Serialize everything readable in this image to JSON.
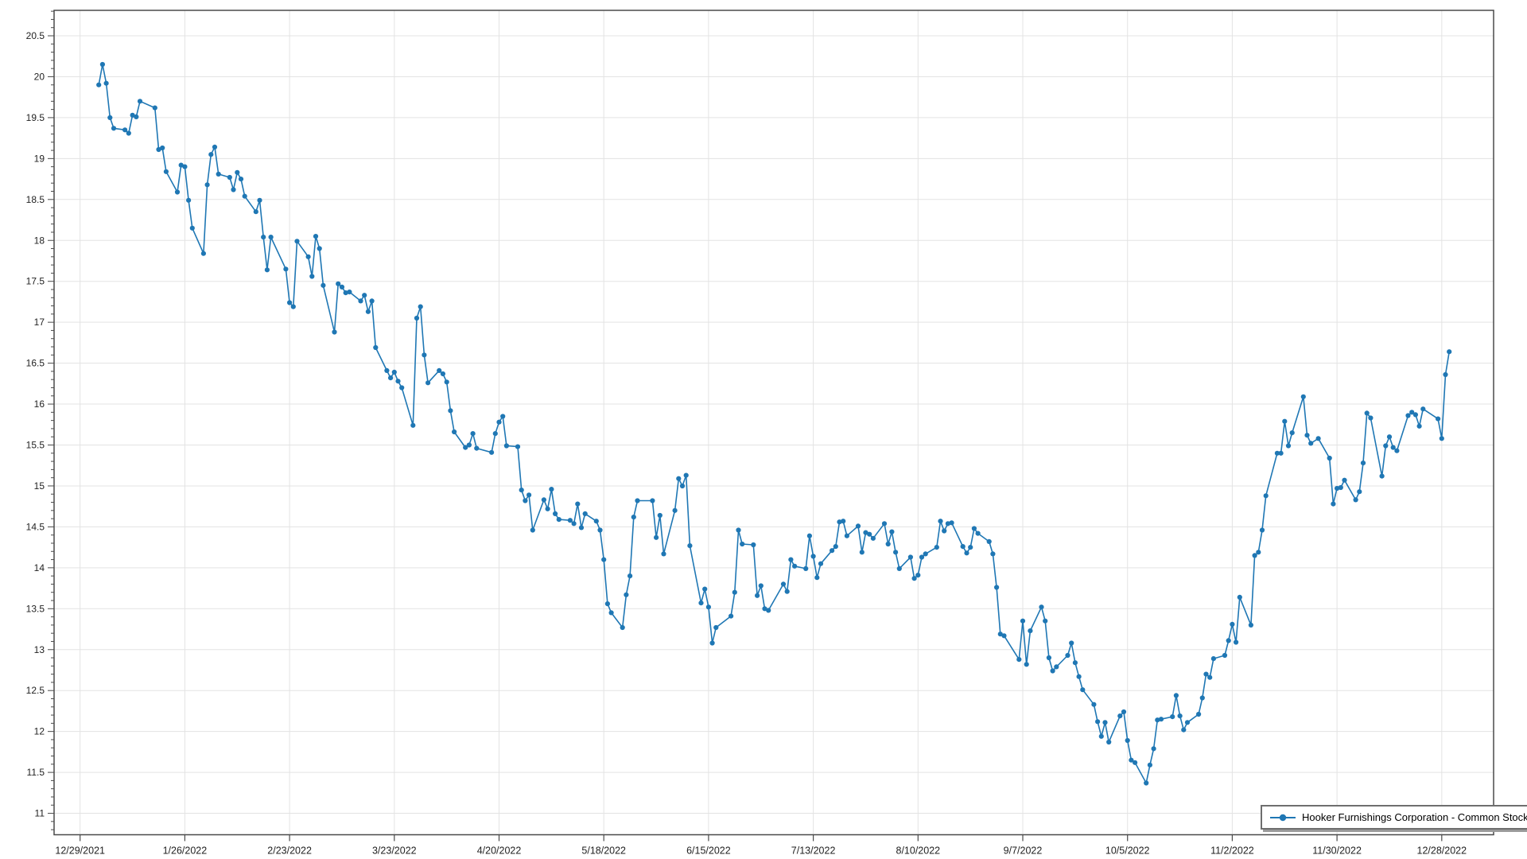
{
  "window": {
    "background": "#ffffff"
  },
  "chart_data": {
    "type": "line",
    "title": "",
    "xlabel": "",
    "ylabel": "",
    "grid": true,
    "legend_position": "bottom-right",
    "marker": "circle",
    "series": [
      {
        "name": "Hooker Furnishings Corporation - Common Stock",
        "color": "#1f77b4",
        "points": [
          [
            "1/3/2022",
            19.9
          ],
          [
            "1/4/2022",
            20.15
          ],
          [
            "1/5/2022",
            19.92
          ],
          [
            "1/6/2022",
            19.5
          ],
          [
            "1/7/2022",
            19.37
          ],
          [
            "1/10/2022",
            19.35
          ],
          [
            "1/11/2022",
            19.31
          ],
          [
            "1/12/2022",
            19.53
          ],
          [
            "1/13/2022",
            19.51
          ],
          [
            "1/14/2022",
            19.7
          ],
          [
            "1/18/2022",
            19.62
          ],
          [
            "1/19/2022",
            19.11
          ],
          [
            "1/20/2022",
            19.13
          ],
          [
            "1/21/2022",
            18.84
          ],
          [
            "1/24/2022",
            18.59
          ],
          [
            "1/25/2022",
            18.92
          ],
          [
            "1/26/2022",
            18.9
          ],
          [
            "1/27/2022",
            18.49
          ],
          [
            "1/28/2022",
            18.15
          ],
          [
            "1/31/2022",
            17.84
          ],
          [
            "2/1/2022",
            18.68
          ],
          [
            "2/2/2022",
            19.05
          ],
          [
            "2/3/2022",
            19.14
          ],
          [
            "2/4/2022",
            18.81
          ],
          [
            "2/7/2022",
            18.77
          ],
          [
            "2/8/2022",
            18.62
          ],
          [
            "2/9/2022",
            18.83
          ],
          [
            "2/10/2022",
            18.75
          ],
          [
            "2/11/2022",
            18.54
          ],
          [
            "2/14/2022",
            18.35
          ],
          [
            "2/15/2022",
            18.49
          ],
          [
            "2/16/2022",
            18.04
          ],
          [
            "2/17/2022",
            17.64
          ],
          [
            "2/18/2022",
            18.04
          ],
          [
            "2/22/2022",
            17.65
          ],
          [
            "2/23/2022",
            17.24
          ],
          [
            "2/24/2022",
            17.19
          ],
          [
            "2/25/2022",
            17.99
          ],
          [
            "2/28/2022",
            17.8
          ],
          [
            "3/1/2022",
            17.56
          ],
          [
            "3/2/2022",
            18.05
          ],
          [
            "3/3/2022",
            17.9
          ],
          [
            "3/4/2022",
            17.45
          ],
          [
            "3/7/2022",
            16.88
          ],
          [
            "3/8/2022",
            17.47
          ],
          [
            "3/9/2022",
            17.43
          ],
          [
            "3/10/2022",
            17.36
          ],
          [
            "3/11/2022",
            17.37
          ],
          [
            "3/14/2022",
            17.26
          ],
          [
            "3/15/2022",
            17.33
          ],
          [
            "3/16/2022",
            17.13
          ],
          [
            "3/17/2022",
            17.26
          ],
          [
            "3/18/2022",
            16.69
          ],
          [
            "3/21/2022",
            16.41
          ],
          [
            "3/22/2022",
            16.32
          ],
          [
            "3/23/2022",
            16.39
          ],
          [
            "3/24/2022",
            16.28
          ],
          [
            "3/25/2022",
            16.2
          ],
          [
            "3/28/2022",
            15.74
          ],
          [
            "3/29/2022",
            17.05
          ],
          [
            "3/30/2022",
            17.19
          ],
          [
            "3/31/2022",
            16.6
          ],
          [
            "4/1/2022",
            16.26
          ],
          [
            "4/4/2022",
            16.41
          ],
          [
            "4/5/2022",
            16.37
          ],
          [
            "4/6/2022",
            16.27
          ],
          [
            "4/7/2022",
            15.92
          ],
          [
            "4/8/2022",
            15.66
          ],
          [
            "4/11/2022",
            15.47
          ],
          [
            "4/12/2022",
            15.5
          ],
          [
            "4/13/2022",
            15.64
          ],
          [
            "4/14/2022",
            15.46
          ],
          [
            "4/18/2022",
            15.41
          ],
          [
            "4/19/2022",
            15.64
          ],
          [
            "4/20/2022",
            15.78
          ],
          [
            "4/21/2022",
            15.85
          ],
          [
            "4/22/2022",
            15.49
          ],
          [
            "4/25/2022",
            15.48
          ],
          [
            "4/26/2022",
            14.95
          ],
          [
            "4/27/2022",
            14.82
          ],
          [
            "4/28/2022",
            14.89
          ],
          [
            "4/29/2022",
            14.46
          ],
          [
            "5/2/2022",
            14.83
          ],
          [
            "5/3/2022",
            14.72
          ],
          [
            "5/4/2022",
            14.96
          ],
          [
            "5/5/2022",
            14.66
          ],
          [
            "5/6/2022",
            14.59
          ],
          [
            "5/9/2022",
            14.58
          ],
          [
            "5/10/2022",
            14.54
          ],
          [
            "5/11/2022",
            14.78
          ],
          [
            "5/12/2022",
            14.49
          ],
          [
            "5/13/2022",
            14.66
          ],
          [
            "5/16/2022",
            14.57
          ],
          [
            "5/17/2022",
            14.46
          ],
          [
            "5/18/2022",
            14.1
          ],
          [
            "5/19/2022",
            13.56
          ],
          [
            "5/20/2022",
            13.45
          ],
          [
            "5/23/2022",
            13.27
          ],
          [
            "5/24/2022",
            13.67
          ],
          [
            "5/25/2022",
            13.9
          ],
          [
            "5/26/2022",
            14.62
          ],
          [
            "5/27/2022",
            14.82
          ],
          [
            "5/31/2022",
            14.82
          ],
          [
            "6/1/2022",
            14.37
          ],
          [
            "6/2/2022",
            14.64
          ],
          [
            "6/3/2022",
            14.17
          ],
          [
            "6/6/2022",
            14.7
          ],
          [
            "6/7/2022",
            15.09
          ],
          [
            "6/8/2022",
            15.0
          ],
          [
            "6/9/2022",
            15.13
          ],
          [
            "6/10/2022",
            14.27
          ],
          [
            "6/13/2022",
            13.57
          ],
          [
            "6/14/2022",
            13.74
          ],
          [
            "6/15/2022",
            13.52
          ],
          [
            "6/16/2022",
            13.08
          ],
          [
            "6/17/2022",
            13.27
          ],
          [
            "6/21/2022",
            13.41
          ],
          [
            "6/22/2022",
            13.7
          ],
          [
            "6/23/2022",
            14.46
          ],
          [
            "6/24/2022",
            14.29
          ],
          [
            "6/27/2022",
            14.28
          ],
          [
            "6/28/2022",
            13.66
          ],
          [
            "6/29/2022",
            13.78
          ],
          [
            "6/30/2022",
            13.5
          ],
          [
            "7/1/2022",
            13.48
          ],
          [
            "7/5/2022",
            13.8
          ],
          [
            "7/6/2022",
            13.71
          ],
          [
            "7/7/2022",
            14.1
          ],
          [
            "7/8/2022",
            14.02
          ],
          [
            "7/11/2022",
            13.99
          ],
          [
            "7/12/2022",
            14.39
          ],
          [
            "7/13/2022",
            14.14
          ],
          [
            "7/14/2022",
            13.88
          ],
          [
            "7/15/2022",
            14.05
          ],
          [
            "7/18/2022",
            14.21
          ],
          [
            "7/19/2022",
            14.26
          ],
          [
            "7/20/2022",
            14.56
          ],
          [
            "7/21/2022",
            14.57
          ],
          [
            "7/22/2022",
            14.39
          ],
          [
            "7/25/2022",
            14.51
          ],
          [
            "7/26/2022",
            14.19
          ],
          [
            "7/27/2022",
            14.43
          ],
          [
            "7/28/2022",
            14.41
          ],
          [
            "7/29/2022",
            14.36
          ],
          [
            "8/1/2022",
            14.54
          ],
          [
            "8/2/2022",
            14.29
          ],
          [
            "8/3/2022",
            14.44
          ],
          [
            "8/4/2022",
            14.19
          ],
          [
            "8/5/2022",
            13.99
          ],
          [
            "8/8/2022",
            14.13
          ],
          [
            "8/9/2022",
            13.87
          ],
          [
            "8/10/2022",
            13.91
          ],
          [
            "8/11/2022",
            14.13
          ],
          [
            "8/12/2022",
            14.17
          ],
          [
            "8/15/2022",
            14.25
          ],
          [
            "8/16/2022",
            14.57
          ],
          [
            "8/17/2022",
            14.45
          ],
          [
            "8/18/2022",
            14.54
          ],
          [
            "8/19/2022",
            14.55
          ],
          [
            "8/22/2022",
            14.26
          ],
          [
            "8/23/2022",
            14.18
          ],
          [
            "8/24/2022",
            14.25
          ],
          [
            "8/25/2022",
            14.48
          ],
          [
            "8/26/2022",
            14.42
          ],
          [
            "8/29/2022",
            14.32
          ],
          [
            "8/30/2022",
            14.17
          ],
          [
            "8/31/2022",
            13.76
          ],
          [
            "9/1/2022",
            13.19
          ],
          [
            "9/2/2022",
            13.17
          ],
          [
            "9/6/2022",
            12.88
          ],
          [
            "9/7/2022",
            13.35
          ],
          [
            "9/8/2022",
            12.82
          ],
          [
            "9/9/2022",
            13.23
          ],
          [
            "9/12/2022",
            13.52
          ],
          [
            "9/13/2022",
            13.35
          ],
          [
            "9/14/2022",
            12.9
          ],
          [
            "9/15/2022",
            12.74
          ],
          [
            "9/16/2022",
            12.79
          ],
          [
            "9/19/2022",
            12.93
          ],
          [
            "9/20/2022",
            13.08
          ],
          [
            "9/21/2022",
            12.84
          ],
          [
            "9/22/2022",
            12.67
          ],
          [
            "9/23/2022",
            12.51
          ],
          [
            "9/26/2022",
            12.33
          ],
          [
            "9/27/2022",
            12.12
          ],
          [
            "9/28/2022",
            11.94
          ],
          [
            "9/29/2022",
            12.11
          ],
          [
            "9/30/2022",
            11.87
          ],
          [
            "10/3/2022",
            12.19
          ],
          [
            "10/4/2022",
            12.24
          ],
          [
            "10/5/2022",
            11.89
          ],
          [
            "10/6/2022",
            11.65
          ],
          [
            "10/7/2022",
            11.62
          ],
          [
            "10/10/2022",
            11.37
          ],
          [
            "10/11/2022",
            11.59
          ],
          [
            "10/12/2022",
            11.79
          ],
          [
            "10/13/2022",
            12.14
          ],
          [
            "10/14/2022",
            12.15
          ],
          [
            "10/17/2022",
            12.18
          ],
          [
            "10/18/2022",
            12.44
          ],
          [
            "10/19/2022",
            12.19
          ],
          [
            "10/20/2022",
            12.02
          ],
          [
            "10/21/2022",
            12.11
          ],
          [
            "10/24/2022",
            12.21
          ],
          [
            "10/25/2022",
            12.41
          ],
          [
            "10/26/2022",
            12.7
          ],
          [
            "10/27/2022",
            12.66
          ],
          [
            "10/28/2022",
            12.89
          ],
          [
            "10/31/2022",
            12.93
          ],
          [
            "11/1/2022",
            13.11
          ],
          [
            "11/2/2022",
            13.31
          ],
          [
            "11/3/2022",
            13.09
          ],
          [
            "11/4/2022",
            13.64
          ],
          [
            "11/7/2022",
            13.3
          ],
          [
            "11/8/2022",
            14.15
          ],
          [
            "11/9/2022",
            14.19
          ],
          [
            "11/10/2022",
            14.46
          ],
          [
            "11/11/2022",
            14.88
          ],
          [
            "11/14/2022",
            15.4
          ],
          [
            "11/15/2022",
            15.4
          ],
          [
            "11/16/2022",
            15.79
          ],
          [
            "11/17/2022",
            15.49
          ],
          [
            "11/18/2022",
            15.65
          ],
          [
            "11/21/2022",
            16.09
          ],
          [
            "11/22/2022",
            15.62
          ],
          [
            "11/23/2022",
            15.52
          ],
          [
            "11/25/2022",
            15.58
          ],
          [
            "11/28/2022",
            15.34
          ],
          [
            "11/29/2022",
            14.78
          ],
          [
            "11/30/2022",
            14.97
          ],
          [
            "12/1/2022",
            14.98
          ],
          [
            "12/2/2022",
            15.07
          ],
          [
            "12/5/2022",
            14.83
          ],
          [
            "12/6/2022",
            14.93
          ],
          [
            "12/7/2022",
            15.28
          ],
          [
            "12/8/2022",
            15.89
          ],
          [
            "12/9/2022",
            15.83
          ],
          [
            "12/12/2022",
            15.12
          ],
          [
            "12/13/2022",
            15.49
          ],
          [
            "12/14/2022",
            15.6
          ],
          [
            "12/15/2022",
            15.47
          ],
          [
            "12/16/2022",
            15.43
          ],
          [
            "12/19/2022",
            15.86
          ],
          [
            "12/20/2022",
            15.9
          ],
          [
            "12/21/2022",
            15.87
          ],
          [
            "12/22/2022",
            15.73
          ],
          [
            "12/23/2022",
            15.94
          ],
          [
            "12/27/2022",
            15.82
          ],
          [
            "12/28/2022",
            15.58
          ],
          [
            "12/29/2022",
            16.36
          ],
          [
            "12/30/2022",
            16.64
          ]
        ]
      }
    ],
    "x_axis": {
      "start_date": "12/29/2021",
      "tick_interval_days": 28,
      "tick_labels": [
        "12/29/2021",
        "1/26/2022",
        "2/23/2022",
        "3/23/2022",
        "4/20/2022",
        "5/18/2022",
        "6/15/2022",
        "7/13/2022",
        "8/10/2022",
        "9/7/2022",
        "10/5/2022",
        "11/2/2022",
        "11/30/2022",
        "12/28/2022"
      ]
    },
    "y_axis": {
      "tick_labels": [
        "20.5",
        "20",
        "19.5",
        "19",
        "18.5",
        "18",
        "17.5",
        "17",
        "16.5",
        "16",
        "15.5",
        "15",
        "14.5",
        "14",
        "13.5",
        "13",
        "12.5",
        "12",
        "11.5",
        "11"
      ],
      "major_step": 0.5,
      "minor_step": 0.1
    },
    "colors": {
      "line": "#1f77b4",
      "marker": "#1f77b4",
      "grid": "#e3e3e3",
      "axis": "#4a4a4a",
      "label": "#222222",
      "legend_border": "#6e6e6e",
      "legend_shadow": "#9a9a9a"
    }
  },
  "legend": {
    "label": "Hooker Furnishings Corporation - Common Stock"
  }
}
